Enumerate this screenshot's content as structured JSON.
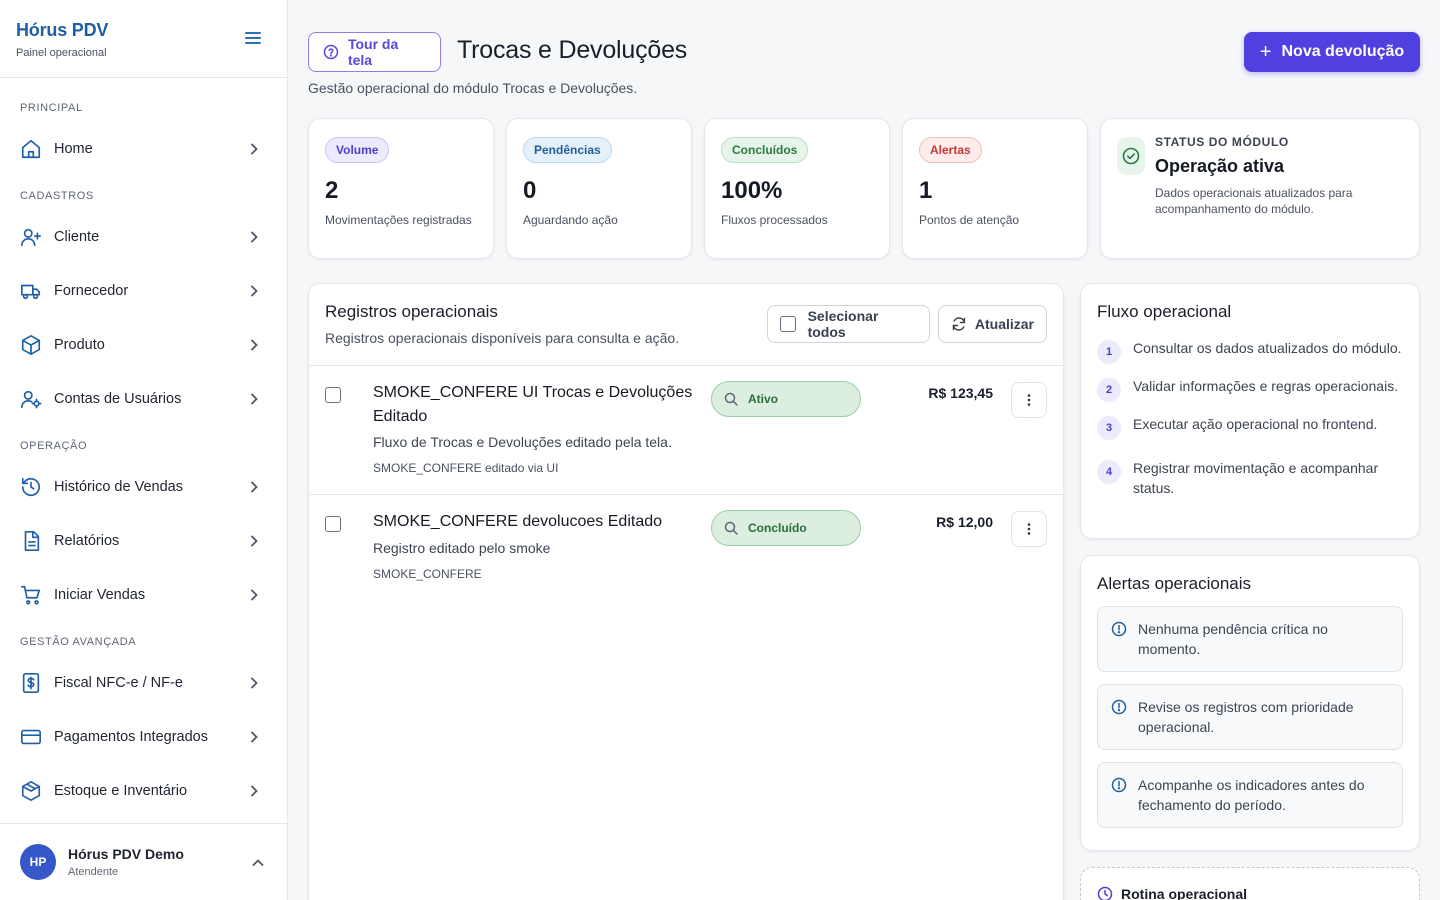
{
  "brand": {
    "name": "Hórus PDV",
    "subtitle": "Painel operacional"
  },
  "sidebar": {
    "sections": {
      "principal": "PRINCIPAL",
      "cadastros": "CADASTROS",
      "operacao": "OPERAÇÃO",
      "gestao": "GESTÃO AVANÇADA"
    },
    "items": [
      {
        "label": "Home",
        "icon": "home-icon"
      },
      {
        "label": "Cliente",
        "icon": "user-plus-icon"
      },
      {
        "label": "Fornecedor",
        "icon": "truck-icon"
      },
      {
        "label": "Produto",
        "icon": "box-icon"
      },
      {
        "label": "Contas de Usuários",
        "icon": "user-gear-icon"
      },
      {
        "label": "Histórico de Vendas",
        "icon": "history-icon"
      },
      {
        "label": "Relatórios",
        "icon": "document-icon"
      },
      {
        "label": "Iniciar Vendas",
        "icon": "cart-icon"
      },
      {
        "label": "Fiscal NFC-e / NF-e",
        "icon": "fiscal-icon"
      },
      {
        "label": "Pagamentos Integrados",
        "icon": "card-icon"
      },
      {
        "label": "Estoque e Inventário",
        "icon": "inventory-icon"
      }
    ]
  },
  "user": {
    "initials": "HP",
    "name": "Hórus PDV Demo",
    "role": "Atendente"
  },
  "header": {
    "tour_label": "Tour da tela",
    "title": "Trocas e Devoluções",
    "subtitle": "Gestão operacional do módulo Trocas e Devoluções.",
    "new_label": "Nova devolução"
  },
  "stats": [
    {
      "badge": "Volume",
      "value": "2",
      "desc": "Movimentações registradas"
    },
    {
      "badge": "Pendências",
      "value": "0",
      "desc": "Aguardando ação"
    },
    {
      "badge": "Concluídos",
      "value": "100%",
      "desc": "Fluxos processados"
    },
    {
      "badge": "Alertas",
      "value": "1",
      "desc": "Pontos de atenção"
    }
  ],
  "module_status": {
    "label": "STATUS DO MÓDULO",
    "title": "Operação ativa",
    "desc": "Dados operacionais atualizados para acompanhamento do módulo."
  },
  "records": {
    "title": "Registros operacionais",
    "subtitle": "Registros operacionais disponíveis para consulta e ação.",
    "select_all_label": "Selecionar todos",
    "refresh_label": "Atualizar",
    "rows": [
      {
        "title": "SMOKE_CONFERE UI Trocas e Devoluções Editado",
        "desc": "Fluxo de Trocas e Devoluções editado pela tela.",
        "meta": "SMOKE_CONFERE editado via UI",
        "status": "Ativo",
        "amount": "R$ 123,45"
      },
      {
        "title": "SMOKE_CONFERE devolucoes Editado",
        "desc": "Registro editado pelo smoke",
        "meta": "SMOKE_CONFERE",
        "status": "Concluído",
        "amount": "R$ 12,00"
      }
    ]
  },
  "flow": {
    "title": "Fluxo operacional",
    "steps": [
      {
        "num": "1",
        "text": "Consultar os dados atualizados do módulo."
      },
      {
        "num": "2",
        "text": "Validar informações e regras operacionais."
      },
      {
        "num": "3",
        "text": "Executar ação operacional no frontend."
      },
      {
        "num": "4",
        "text": "Registrar movimentação e acompanhar status."
      }
    ]
  },
  "alerts": {
    "title": "Alertas operacionais",
    "items": [
      "Nenhuma pendência crítica no momento.",
      "Revise os registros com prioridade operacional.",
      "Acompanhe os indicadores antes do fechamento do período."
    ]
  },
  "routine": {
    "title": "Rotina operacional"
  },
  "colors": {
    "brand": "#1e5fa6",
    "accent": "#5140e0",
    "success": "#2b7a41",
    "danger": "#c23a33"
  }
}
